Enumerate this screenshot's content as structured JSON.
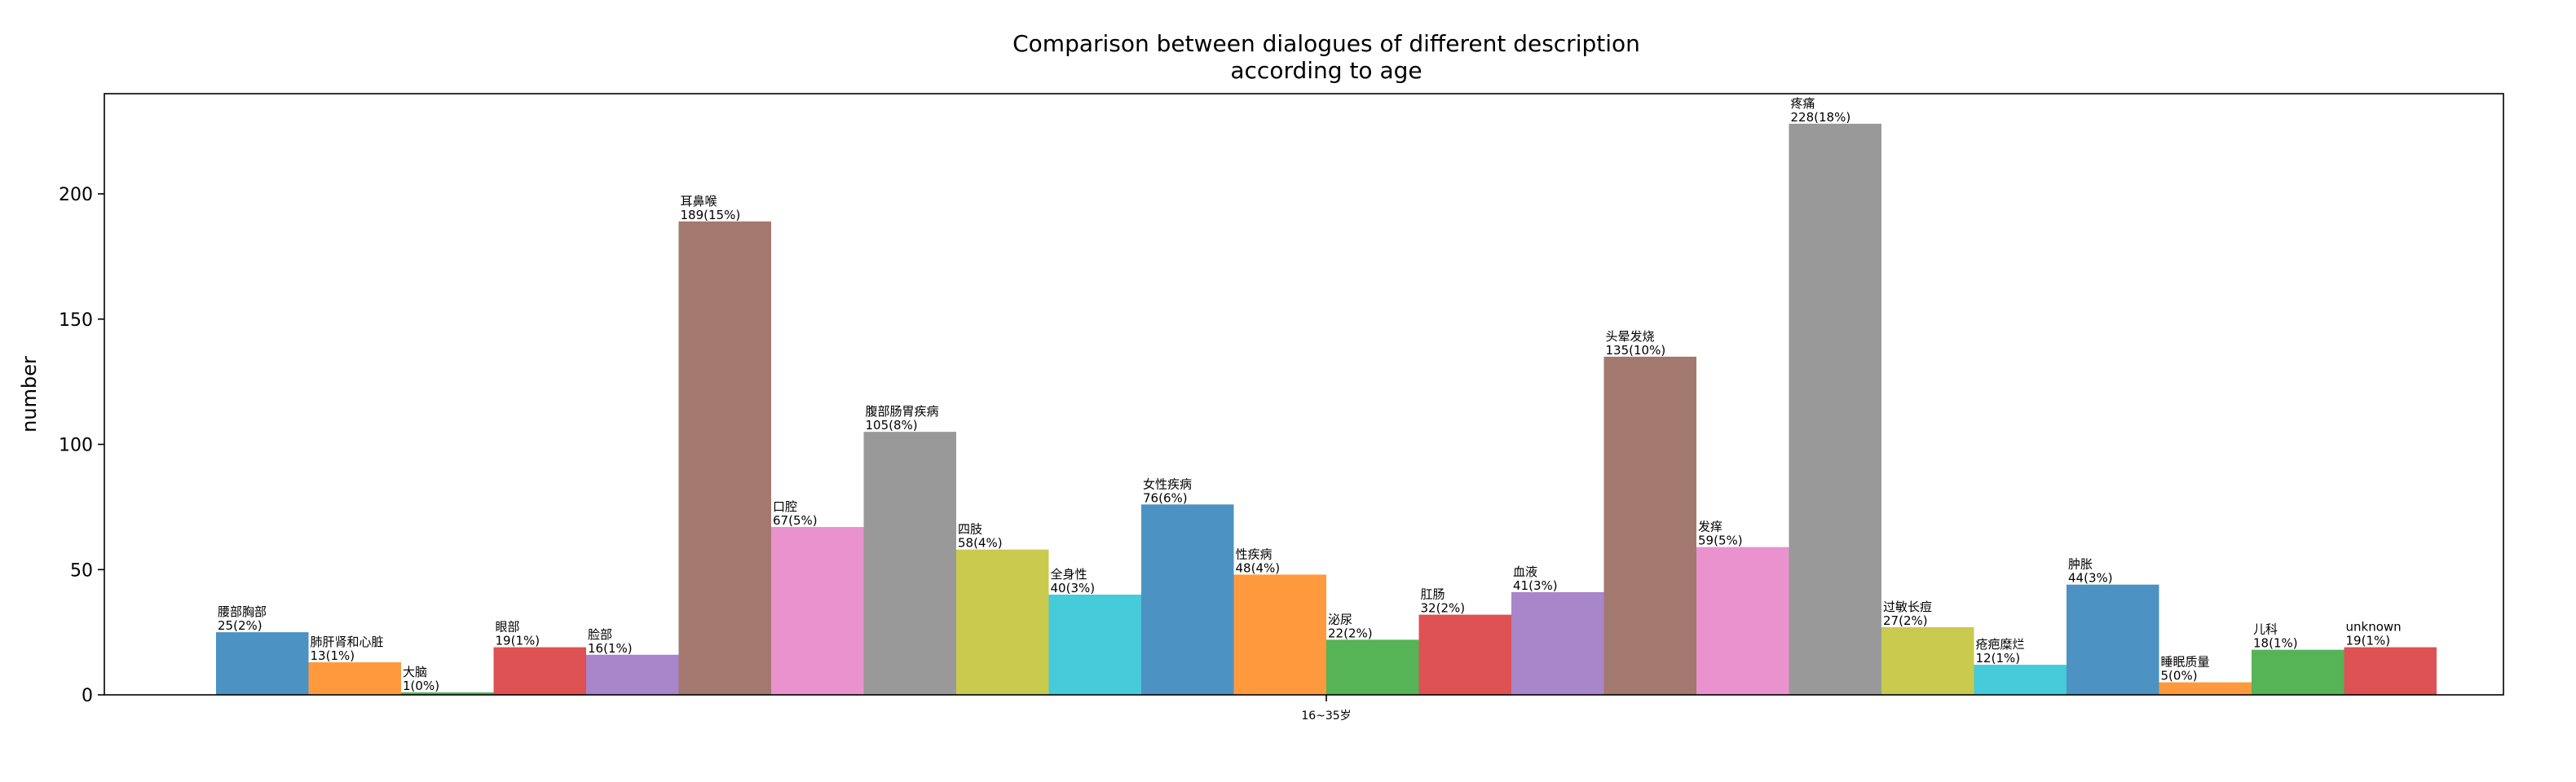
{
  "chart_data": {
    "type": "bar",
    "title": [
      "Comparison between dialogues of different description",
      "according to age"
    ],
    "xlabel": "",
    "ylabel": "number",
    "ylim": [
      0,
      240
    ],
    "yticks": [
      0,
      50,
      100,
      150,
      200
    ],
    "categories": [
      "16~35岁"
    ],
    "grid": false,
    "series": [
      {
        "name": "腰部胸部",
        "value": 25,
        "label": "25(2%)",
        "color": "#1f77b4"
      },
      {
        "name": "肺肝肾和心脏",
        "value": 13,
        "label": "13(1%)",
        "color": "#ff7f0e"
      },
      {
        "name": "大脑",
        "value": 1,
        "label": "1(0%)",
        "color": "#2ca02c"
      },
      {
        "name": "眼部",
        "value": 19,
        "label": "19(1%)",
        "color": "#d62728"
      },
      {
        "name": "脸部",
        "value": 16,
        "label": "16(1%)",
        "color": "#9467bd"
      },
      {
        "name": "耳鼻喉",
        "value": 189,
        "label": "189(15%)",
        "color": "#8c564b"
      },
      {
        "name": "口腔",
        "value": 67,
        "label": "67(5%)",
        "color": "#e377c2"
      },
      {
        "name": "腹部肠胃疾病",
        "value": 105,
        "label": "105(8%)",
        "color": "#7f7f7f"
      },
      {
        "name": "四肢",
        "value": 58,
        "label": "58(4%)",
        "color": "#bcbd22"
      },
      {
        "name": "全身性",
        "value": 40,
        "label": "40(3%)",
        "color": "#17becf"
      },
      {
        "name": "女性疾病",
        "value": 76,
        "label": "76(6%)",
        "color": "#1f77b4"
      },
      {
        "name": "性疾病",
        "value": 48,
        "label": "48(4%)",
        "color": "#ff7f0e"
      },
      {
        "name": "泌尿",
        "value": 22,
        "label": "22(2%)",
        "color": "#2ca02c"
      },
      {
        "name": "肛肠",
        "value": 32,
        "label": "32(2%)",
        "color": "#d62728"
      },
      {
        "name": "血液",
        "value": 41,
        "label": "41(3%)",
        "color": "#9467bd"
      },
      {
        "name": "头晕发烧",
        "value": 135,
        "label": "135(10%)",
        "color": "#8c564b"
      },
      {
        "name": "发痒",
        "value": 59,
        "label": "59(5%)",
        "color": "#e377c2"
      },
      {
        "name": "疼痛",
        "value": 228,
        "label": "228(18%)",
        "color": "#7f7f7f"
      },
      {
        "name": "过敏长痘",
        "value": 27,
        "label": "27(2%)",
        "color": "#bcbd22"
      },
      {
        "name": "疮疤糜烂",
        "value": 12,
        "label": "12(1%)",
        "color": "#17becf"
      },
      {
        "name": "肿胀",
        "value": 44,
        "label": "44(3%)",
        "color": "#1f77b4"
      },
      {
        "name": "睡眠质量",
        "value": 5,
        "label": "5(0%)",
        "color": "#ff7f0e"
      },
      {
        "name": "儿科",
        "value": 18,
        "label": "18(1%)",
        "color": "#2ca02c"
      },
      {
        "name": "unknown",
        "value": 19,
        "label": "19(1%)",
        "color": "#d62728"
      }
    ]
  }
}
